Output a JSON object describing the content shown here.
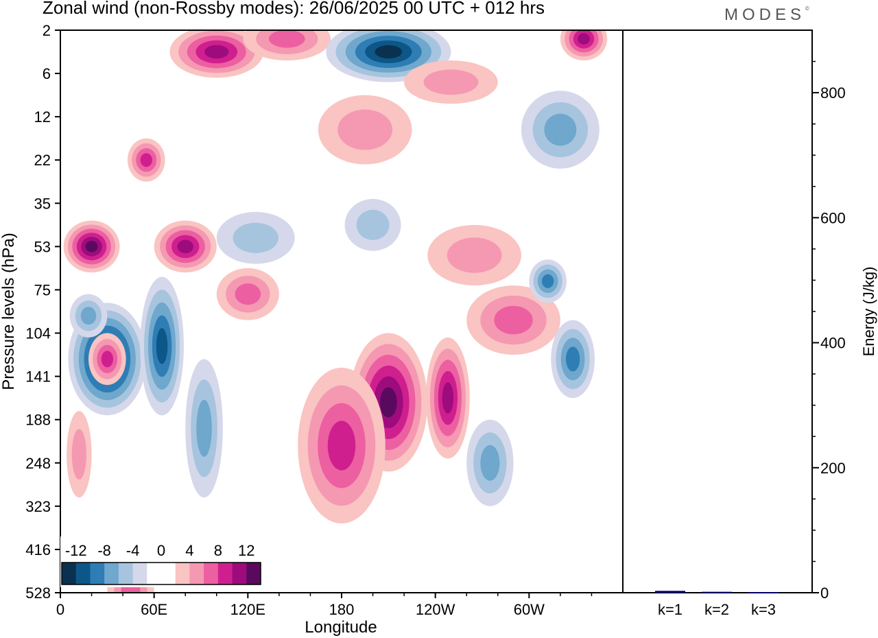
{
  "chart_data": [
    {
      "type": "heatmap",
      "title": "Zonal wind (non-Rossby modes):  26/06/2025  00 UTC  + 012 hrs",
      "xlabel": "Longitude",
      "ylabel": "Pressure levels (hPa)",
      "x_ticks": [
        "0",
        "60E",
        "120E",
        "180",
        "120W",
        "60W"
      ],
      "x_tick_values": [
        0,
        60,
        120,
        180,
        240,
        300
      ],
      "xlim": [
        0,
        360
      ],
      "y_ticks": [
        "2",
        "6",
        "12",
        "22",
        "35",
        "53",
        "75",
        "104",
        "141",
        "188",
        "248",
        "323",
        "416",
        "528"
      ],
      "colorbar": {
        "tick_labels": [
          "-12",
          "-8",
          "-4",
          "0",
          "4",
          "8",
          "12"
        ],
        "tick_values": [
          -12,
          -8,
          -4,
          0,
          4,
          8,
          12
        ],
        "colors": [
          "#0b3150",
          "#0d5688",
          "#2e7db5",
          "#6fa7cd",
          "#a6c4de",
          "#d5d8ea",
          "#ffffff",
          "#ffffff",
          "#f9c4c2",
          "#f598b2",
          "#ec5fa0",
          "#cf1f8f",
          "#9e0b7d",
          "#5a0a5e"
        ]
      },
      "features": [
        {
          "lon": 20,
          "level": 5,
          "value": 12,
          "w": 18,
          "h": 0.6
        },
        {
          "lon": 55,
          "level": 3,
          "value": 8,
          "w": 12,
          "h": 0.5
        },
        {
          "lon": 80,
          "level": 5,
          "value": 10,
          "w": 20,
          "h": 0.6
        },
        {
          "lon": 100,
          "level": 0.5,
          "value": 10,
          "w": 30,
          "h": 0.6
        },
        {
          "lon": 145,
          "level": 0.2,
          "value": 6,
          "w": 28,
          "h": 0.5
        },
        {
          "lon": 210,
          "level": 0.5,
          "value": -13,
          "w": 40,
          "h": 0.7
        },
        {
          "lon": 250,
          "level": 1.2,
          "value": 5,
          "w": 30,
          "h": 0.5
        },
        {
          "lon": 335,
          "level": 0.2,
          "value": 10,
          "w": 15,
          "h": 0.5
        },
        {
          "lon": 30,
          "level": 7.6,
          "value": -14,
          "w": 25,
          "h": 1.3
        },
        {
          "lon": 65,
          "level": 7.3,
          "value": -10,
          "w": 14,
          "h": 1.6
        },
        {
          "lon": 92,
          "level": 9.2,
          "value": -7,
          "w": 12,
          "h": 1.6
        },
        {
          "lon": 30,
          "level": 7.6,
          "value": 9,
          "w": 12,
          "h": 0.6
        },
        {
          "lon": 18,
          "level": 6.6,
          "value": -7,
          "w": 12,
          "h": 0.5
        },
        {
          "lon": 210,
          "level": 8.6,
          "value": 13,
          "w": 25,
          "h": 1.6
        },
        {
          "lon": 180,
          "level": 9.6,
          "value": 8,
          "w": 28,
          "h": 1.8
        },
        {
          "lon": 248,
          "level": 8.5,
          "value": 11,
          "w": 14,
          "h": 1.4
        },
        {
          "lon": 290,
          "level": 6.7,
          "value": 7,
          "w": 30,
          "h": 0.8
        },
        {
          "lon": 328,
          "level": 7.6,
          "value": -8,
          "w": 14,
          "h": 0.9
        },
        {
          "lon": 312,
          "level": 5.8,
          "value": -8,
          "w": 12,
          "h": 0.5
        },
        {
          "lon": 265,
          "level": 5.2,
          "value": 5,
          "w": 30,
          "h": 0.7
        },
        {
          "lon": 125,
          "level": 4.8,
          "value": -5,
          "w": 25,
          "h": 0.6
        },
        {
          "lon": 200,
          "level": 4.5,
          "value": -5,
          "w": 18,
          "h": 0.6
        },
        {
          "lon": 120,
          "level": 6.1,
          "value": 6,
          "w": 20,
          "h": 0.6
        },
        {
          "lon": 195,
          "level": 2.3,
          "value": 5,
          "w": 30,
          "h": 0.8
        },
        {
          "lon": 320,
          "level": 2.3,
          "value": -6,
          "w": 25,
          "h": 0.9
        },
        {
          "lon": 12,
          "level": 9.8,
          "value": 5,
          "w": 8,
          "h": 1.0
        },
        {
          "lon": 45,
          "level": 13.0,
          "value": 6,
          "w": 15,
          "h": 1.2
        },
        {
          "lon": 275,
          "level": 10.0,
          "value": -6,
          "w": 15,
          "h": 1.0
        }
      ]
    },
    {
      "type": "bar",
      "ylabel": "Energy (J/kg)",
      "categories": [
        "k=1",
        "k=2",
        "k=3"
      ],
      "values": [
        3,
        1.5,
        1
      ],
      "ylim": [
        0,
        900
      ],
      "y_ticks": [
        0,
        200,
        400,
        600,
        800
      ],
      "bar_color": "#000080"
    }
  ]
}
